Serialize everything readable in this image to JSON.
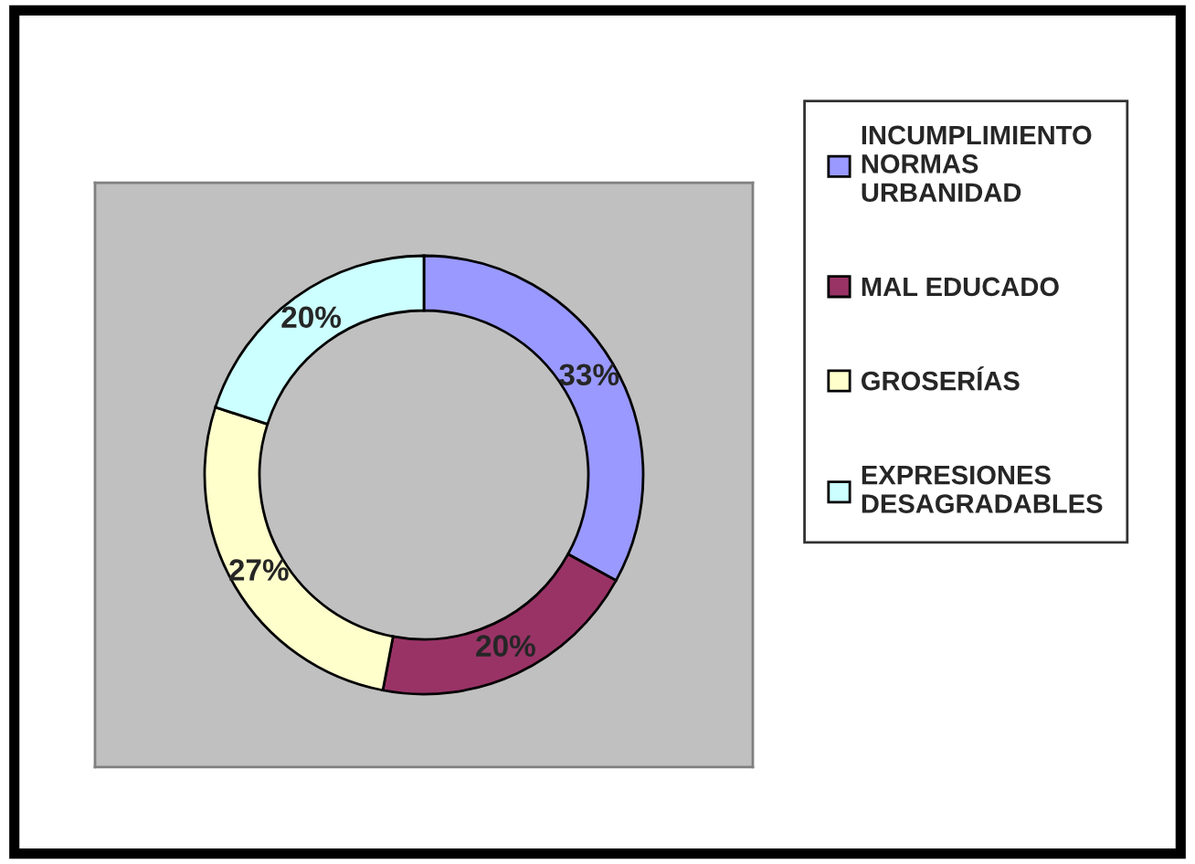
{
  "chart_data": {
    "type": "donut",
    "categories": [
      "INCUMPLIMIENTO\nNORMAS\nURBANIDAD",
      "MAL EDUCADO",
      "GROSERÍAS",
      "EXPRESIONES\nDESAGRADABLES"
    ],
    "values": [
      33,
      20,
      27,
      20
    ],
    "colors": [
      "#9999ff",
      "#993366",
      "#ffffcc",
      "#ccffff"
    ],
    "value_labels": [
      "33%",
      "20%",
      "27%",
      "20%"
    ],
    "legend": "right"
  }
}
